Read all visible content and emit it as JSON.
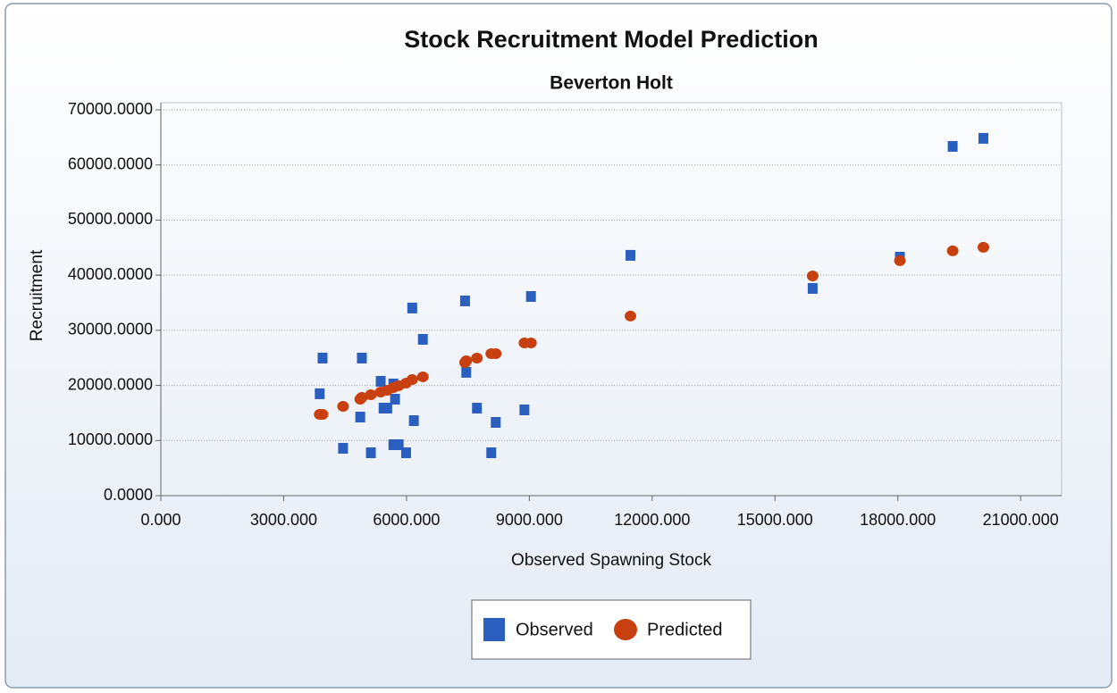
{
  "chart_data": {
    "type": "scatter",
    "title": "Stock Recruitment Model Prediction",
    "subtitle": "Beverton Holt",
    "x_label": "Observed Spawning Stock",
    "y_label": "Recruitment",
    "xlim": [
      0,
      22000
    ],
    "ylim": [
      0,
      70000
    ],
    "xticks": [
      {
        "value": 0,
        "label": "0.000"
      },
      {
        "value": 3000,
        "label": "3000.000"
      },
      {
        "value": 6000,
        "label": "6000.000"
      },
      {
        "value": 9000,
        "label": "9000.000"
      },
      {
        "value": 12000,
        "label": "12000.000"
      },
      {
        "value": 15000,
        "label": "15000.000"
      },
      {
        "value": 18000,
        "label": "18000.000"
      },
      {
        "value": 21000,
        "label": "21000.000"
      }
    ],
    "yticks": [
      {
        "value": 0,
        "label": "0.0000"
      },
      {
        "value": 10000,
        "label": "10000.0000"
      },
      {
        "value": 20000,
        "label": "20000.0000"
      },
      {
        "value": 30000,
        "label": "30000.0000"
      },
      {
        "value": 40000,
        "label": "40000.0000"
      },
      {
        "value": 50000,
        "label": "50000.0000"
      },
      {
        "value": 60000,
        "label": "60000.0000"
      },
      {
        "value": 70000,
        "label": "70000.0000"
      }
    ],
    "grid": true,
    "legend": "bottom",
    "series": [
      {
        "name": "Observed",
        "color": "#2a5fc0",
        "marker": "square",
        "x": [
          3880,
          3950,
          4450,
          4910,
          4870,
          5130,
          5370,
          5440,
          5530,
          5680,
          5720,
          5680,
          5810,
          5990,
          6140,
          6180,
          6400,
          7430,
          7460,
          7720,
          8070,
          8180,
          8880,
          9040,
          11470,
          15920,
          18050,
          19340,
          20090
        ],
        "values": [
          18480,
          24960,
          8590,
          24960,
          14260,
          7780,
          20750,
          15880,
          15880,
          20260,
          17500,
          9240,
          9240,
          7780,
          34040,
          13610,
          28360,
          35330,
          22370,
          15880,
          7780,
          13290,
          15560,
          36140,
          43600,
          37600,
          43270,
          63370,
          64830
        ]
      },
      {
        "name": "Predicted",
        "color": "#c8400f",
        "marker": "circle",
        "x": [
          3880,
          3950,
          4450,
          4870,
          4910,
          5130,
          5370,
          5530,
          5680,
          5810,
          5990,
          6140,
          6400,
          7430,
          7460,
          7720,
          8070,
          8180,
          8880,
          9040,
          11470,
          15920,
          18050,
          19340,
          20090
        ],
        "values": [
          14750,
          14750,
          16200,
          17500,
          17830,
          18310,
          18800,
          19120,
          19610,
          19940,
          20420,
          21070,
          21560,
          24150,
          24470,
          24960,
          25770,
          25770,
          27710,
          27710,
          32580,
          39870,
          42630,
          44410,
          45060
        ]
      }
    ]
  }
}
